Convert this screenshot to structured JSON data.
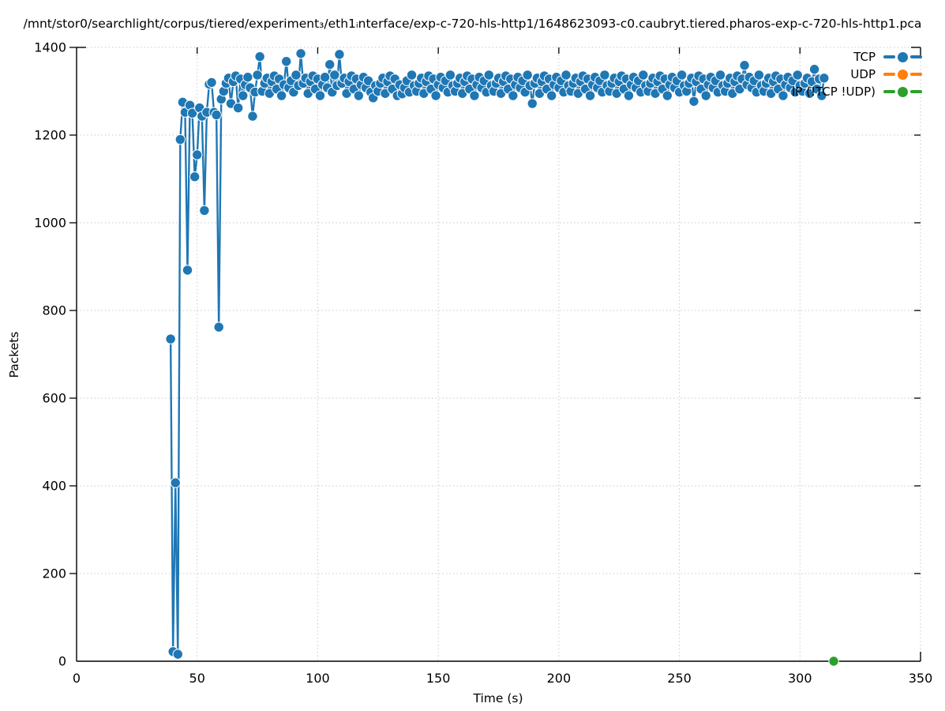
{
  "title": "/mnt/stor0/searchlight/corpus/tiered/experiment₃/eth1ᵢnterface/exp-c-720-hls-http1/1648623093-c0.caubryt.tiered.pharos-exp-c-720-hls-http1.pca",
  "axes": {
    "xlabel": "Time (s)",
    "ylabel": "Packets",
    "xticks": [
      0,
      50,
      100,
      150,
      200,
      250,
      300,
      350
    ],
    "yticks": [
      0,
      200,
      400,
      600,
      800,
      1000,
      1200,
      1400
    ]
  },
  "legend": {
    "items": [
      {
        "label": "TCP",
        "color": "#1f77b4"
      },
      {
        "label": "UDP",
        "color": "#ff7f0e"
      },
      {
        "label": "IP (!TCP !UDP)",
        "color": "#2ca02c"
      }
    ]
  },
  "chart_data": {
    "type": "line",
    "title": "/mnt/stor0/searchlight/corpus/tiered/experiment₃/eth1ᵢnterface/exp-c-720-hls-http1/1648623093-c0.caubryt.tiered.pharos-exp-c-720-hls-http1.pca",
    "xlabel": "Time (s)",
    "ylabel": "Packets",
    "xlim": [
      0,
      350
    ],
    "ylim": [
      0,
      1400
    ],
    "grid": true,
    "legend_position": "upper right",
    "series": [
      {
        "name": "TCP",
        "color": "#1f77b4",
        "points": [
          [
            39,
            735
          ],
          [
            40,
            22
          ],
          [
            41,
            407
          ],
          [
            42,
            16
          ],
          [
            43,
            1190
          ],
          [
            44,
            1275
          ],
          [
            45,
            1252
          ],
          [
            46,
            892
          ],
          [
            47,
            1268
          ],
          [
            48,
            1250
          ],
          [
            49,
            1105
          ],
          [
            50,
            1155
          ],
          [
            51,
            1262
          ],
          [
            52,
            1243
          ],
          [
            53,
            1028
          ],
          [
            54,
            1252
          ],
          [
            55,
            1316
          ],
          [
            56,
            1320
          ],
          [
            57,
            1252
          ],
          [
            58,
            1246
          ],
          [
            59,
            762
          ],
          [
            60,
            1282
          ],
          [
            61,
            1300
          ],
          [
            62,
            1318
          ],
          [
            63,
            1330
          ],
          [
            64,
            1272
          ],
          [
            65,
            1322
          ],
          [
            66,
            1335
          ],
          [
            67,
            1262
          ],
          [
            68,
            1328
          ],
          [
            69,
            1290
          ],
          [
            70,
            1315
          ],
          [
            71,
            1332
          ],
          [
            72,
            1308
          ],
          [
            73,
            1243
          ],
          [
            74,
            1298
          ],
          [
            75,
            1337
          ],
          [
            76,
            1379
          ],
          [
            77,
            1300
          ],
          [
            78,
            1318
          ],
          [
            79,
            1330
          ],
          [
            80,
            1295
          ],
          [
            81,
            1322
          ],
          [
            82,
            1335
          ],
          [
            83,
            1305
          ],
          [
            84,
            1328
          ],
          [
            85,
            1290
          ],
          [
            86,
            1315
          ],
          [
            87,
            1368
          ],
          [
            88,
            1308
          ],
          [
            89,
            1324
          ],
          [
            90,
            1298
          ],
          [
            91,
            1337
          ],
          [
            92,
            1313
          ],
          [
            93,
            1386
          ],
          [
            94,
            1318
          ],
          [
            95,
            1330
          ],
          [
            96,
            1295
          ],
          [
            97,
            1322
          ],
          [
            98,
            1335
          ],
          [
            99,
            1305
          ],
          [
            100,
            1328
          ],
          [
            101,
            1290
          ],
          [
            102,
            1315
          ],
          [
            103,
            1332
          ],
          [
            104,
            1308
          ],
          [
            105,
            1361
          ],
          [
            106,
            1298
          ],
          [
            107,
            1337
          ],
          [
            108,
            1313
          ],
          [
            109,
            1384
          ],
          [
            110,
            1318
          ],
          [
            111,
            1330
          ],
          [
            112,
            1295
          ],
          [
            113,
            1322
          ],
          [
            114,
            1335
          ],
          [
            115,
            1305
          ],
          [
            116,
            1328
          ],
          [
            117,
            1290
          ],
          [
            118,
            1315
          ],
          [
            119,
            1332
          ],
          [
            120,
            1308
          ],
          [
            121,
            1324
          ],
          [
            122,
            1298
          ],
          [
            123,
            1285
          ],
          [
            124,
            1313
          ],
          [
            125,
            1300
          ],
          [
            126,
            1318
          ],
          [
            127,
            1330
          ],
          [
            128,
            1295
          ],
          [
            129,
            1322
          ],
          [
            130,
            1335
          ],
          [
            131,
            1305
          ],
          [
            132,
            1328
          ],
          [
            133,
            1290
          ],
          [
            134,
            1315
          ],
          [
            135,
            1294
          ],
          [
            136,
            1308
          ],
          [
            137,
            1324
          ],
          [
            138,
            1298
          ],
          [
            139,
            1337
          ],
          [
            140,
            1313
          ],
          [
            141,
            1300
          ],
          [
            142,
            1318
          ],
          [
            143,
            1330
          ],
          [
            144,
            1295
          ],
          [
            145,
            1322
          ],
          [
            146,
            1335
          ],
          [
            147,
            1305
          ],
          [
            148,
            1328
          ],
          [
            149,
            1290
          ],
          [
            150,
            1315
          ],
          [
            151,
            1332
          ],
          [
            152,
            1308
          ],
          [
            153,
            1324
          ],
          [
            154,
            1298
          ],
          [
            155,
            1337
          ],
          [
            156,
            1313
          ],
          [
            157,
            1300
          ],
          [
            158,
            1318
          ],
          [
            159,
            1330
          ],
          [
            160,
            1295
          ],
          [
            161,
            1322
          ],
          [
            162,
            1335
          ],
          [
            163,
            1305
          ],
          [
            164,
            1328
          ],
          [
            165,
            1290
          ],
          [
            166,
            1315
          ],
          [
            167,
            1332
          ],
          [
            168,
            1308
          ],
          [
            169,
            1324
          ],
          [
            170,
            1298
          ],
          [
            171,
            1337
          ],
          [
            172,
            1313
          ],
          [
            173,
            1300
          ],
          [
            174,
            1318
          ],
          [
            175,
            1330
          ],
          [
            176,
            1295
          ],
          [
            177,
            1322
          ],
          [
            178,
            1335
          ],
          [
            179,
            1305
          ],
          [
            180,
            1328
          ],
          [
            181,
            1290
          ],
          [
            182,
            1315
          ],
          [
            183,
            1332
          ],
          [
            184,
            1308
          ],
          [
            185,
            1324
          ],
          [
            186,
            1298
          ],
          [
            187,
            1337
          ],
          [
            188,
            1313
          ],
          [
            189,
            1272
          ],
          [
            190,
            1318
          ],
          [
            191,
            1330
          ],
          [
            192,
            1295
          ],
          [
            193,
            1322
          ],
          [
            194,
            1335
          ],
          [
            195,
            1305
          ],
          [
            196,
            1328
          ],
          [
            197,
            1290
          ],
          [
            198,
            1315
          ],
          [
            199,
            1332
          ],
          [
            200,
            1308
          ],
          [
            201,
            1324
          ],
          [
            202,
            1298
          ],
          [
            203,
            1337
          ],
          [
            204,
            1313
          ],
          [
            205,
            1300
          ],
          [
            206,
            1318
          ],
          [
            207,
            1330
          ],
          [
            208,
            1295
          ],
          [
            209,
            1322
          ],
          [
            210,
            1335
          ],
          [
            211,
            1305
          ],
          [
            212,
            1328
          ],
          [
            213,
            1290
          ],
          [
            214,
            1315
          ],
          [
            215,
            1332
          ],
          [
            216,
            1308
          ],
          [
            217,
            1324
          ],
          [
            218,
            1298
          ],
          [
            219,
            1337
          ],
          [
            220,
            1313
          ],
          [
            221,
            1300
          ],
          [
            222,
            1318
          ],
          [
            223,
            1330
          ],
          [
            224,
            1295
          ],
          [
            225,
            1322
          ],
          [
            226,
            1335
          ],
          [
            227,
            1305
          ],
          [
            228,
            1328
          ],
          [
            229,
            1290
          ],
          [
            230,
            1315
          ],
          [
            231,
            1332
          ],
          [
            232,
            1308
          ],
          [
            233,
            1324
          ],
          [
            234,
            1298
          ],
          [
            235,
            1337
          ],
          [
            236,
            1313
          ],
          [
            237,
            1300
          ],
          [
            238,
            1318
          ],
          [
            239,
            1330
          ],
          [
            240,
            1295
          ],
          [
            241,
            1322
          ],
          [
            242,
            1335
          ],
          [
            243,
            1305
          ],
          [
            244,
            1328
          ],
          [
            245,
            1290
          ],
          [
            246,
            1315
          ],
          [
            247,
            1332
          ],
          [
            248,
            1308
          ],
          [
            249,
            1324
          ],
          [
            250,
            1298
          ],
          [
            251,
            1337
          ],
          [
            252,
            1313
          ],
          [
            253,
            1300
          ],
          [
            254,
            1318
          ],
          [
            255,
            1330
          ],
          [
            256,
            1277
          ],
          [
            257,
            1322
          ],
          [
            258,
            1335
          ],
          [
            259,
            1305
          ],
          [
            260,
            1328
          ],
          [
            261,
            1290
          ],
          [
            262,
            1315
          ],
          [
            263,
            1332
          ],
          [
            264,
            1308
          ],
          [
            265,
            1324
          ],
          [
            266,
            1298
          ],
          [
            267,
            1337
          ],
          [
            268,
            1313
          ],
          [
            269,
            1300
          ],
          [
            270,
            1318
          ],
          [
            271,
            1330
          ],
          [
            272,
            1295
          ],
          [
            273,
            1322
          ],
          [
            274,
            1335
          ],
          [
            275,
            1305
          ],
          [
            276,
            1328
          ],
          [
            277,
            1359
          ],
          [
            278,
            1315
          ],
          [
            279,
            1332
          ],
          [
            280,
            1308
          ],
          [
            281,
            1324
          ],
          [
            282,
            1298
          ],
          [
            283,
            1337
          ],
          [
            284,
            1313
          ],
          [
            285,
            1300
          ],
          [
            286,
            1318
          ],
          [
            287,
            1330
          ],
          [
            288,
            1295
          ],
          [
            289,
            1322
          ],
          [
            290,
            1335
          ],
          [
            291,
            1305
          ],
          [
            292,
            1328
          ],
          [
            293,
            1290
          ],
          [
            294,
            1315
          ],
          [
            295,
            1332
          ],
          [
            296,
            1308
          ],
          [
            297,
            1324
          ],
          [
            298,
            1298
          ],
          [
            299,
            1337
          ],
          [
            300,
            1313
          ],
          [
            301,
            1300
          ],
          [
            302,
            1318
          ],
          [
            303,
            1330
          ],
          [
            304,
            1295
          ],
          [
            305,
            1322
          ],
          [
            306,
            1350
          ],
          [
            307,
            1305
          ],
          [
            308,
            1328
          ],
          [
            309,
            1290
          ],
          [
            310,
            1330
          ]
        ]
      },
      {
        "name": "UDP",
        "color": "#ff7f0e",
        "points": []
      },
      {
        "name": "IP (!TCP !UDP)",
        "color": "#2ca02c",
        "points": [
          [
            314,
            0
          ]
        ]
      }
    ]
  }
}
